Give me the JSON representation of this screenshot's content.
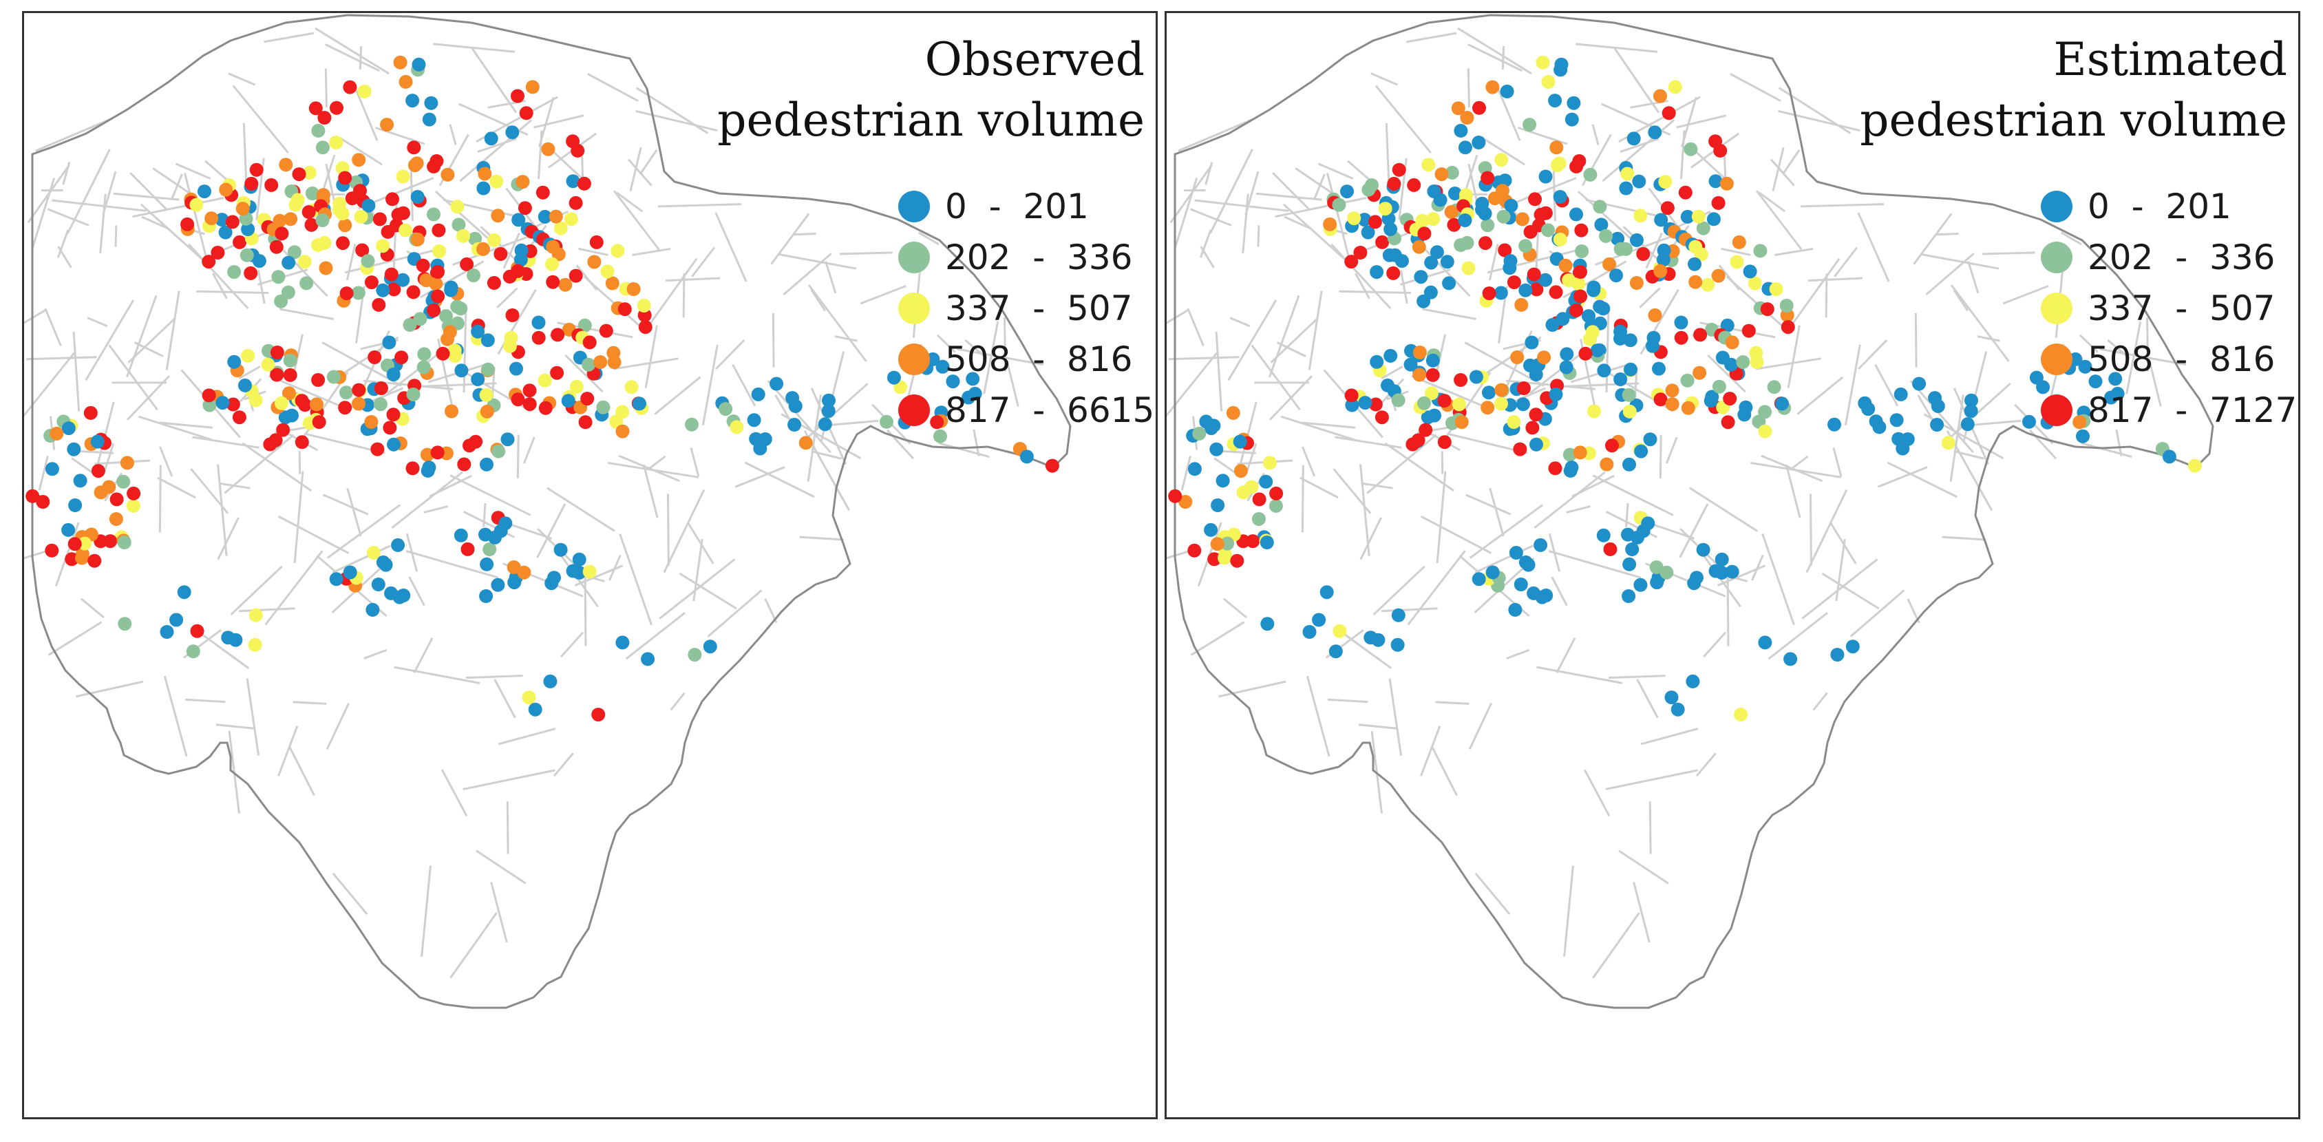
{
  "panels": [
    {
      "title_line1": "Observed",
      "title_line2": "pedestrian volume",
      "legend": [
        {
          "label": "0  -  201",
          "color": "#1f8fc9"
        },
        {
          "label": "202  -  336",
          "color": "#8ec29a"
        },
        {
          "label": "337  -  507",
          "color": "#f5f55a"
        },
        {
          "label": "508  -  816",
          "color": "#f58a27"
        },
        {
          "label": "817  -  6615",
          "color": "#ee1c1c"
        }
      ]
    },
    {
      "title_line1": "Estimated",
      "title_line2": "pedestrian volume",
      "legend": [
        {
          "label": "0  -  201",
          "color": "#1f8fc9"
        },
        {
          "label": "202  -  336",
          "color": "#8ec29a"
        },
        {
          "label": "337  -  507",
          "color": "#f5f55a"
        },
        {
          "label": "508  -  816",
          "color": "#f58a27"
        },
        {
          "label": "817  -  7127",
          "color": "#ee1c1c"
        }
      ]
    }
  ],
  "styles": {
    "boundary_color": "#8a8a8a",
    "road_color": "#cfcfcf"
  }
}
